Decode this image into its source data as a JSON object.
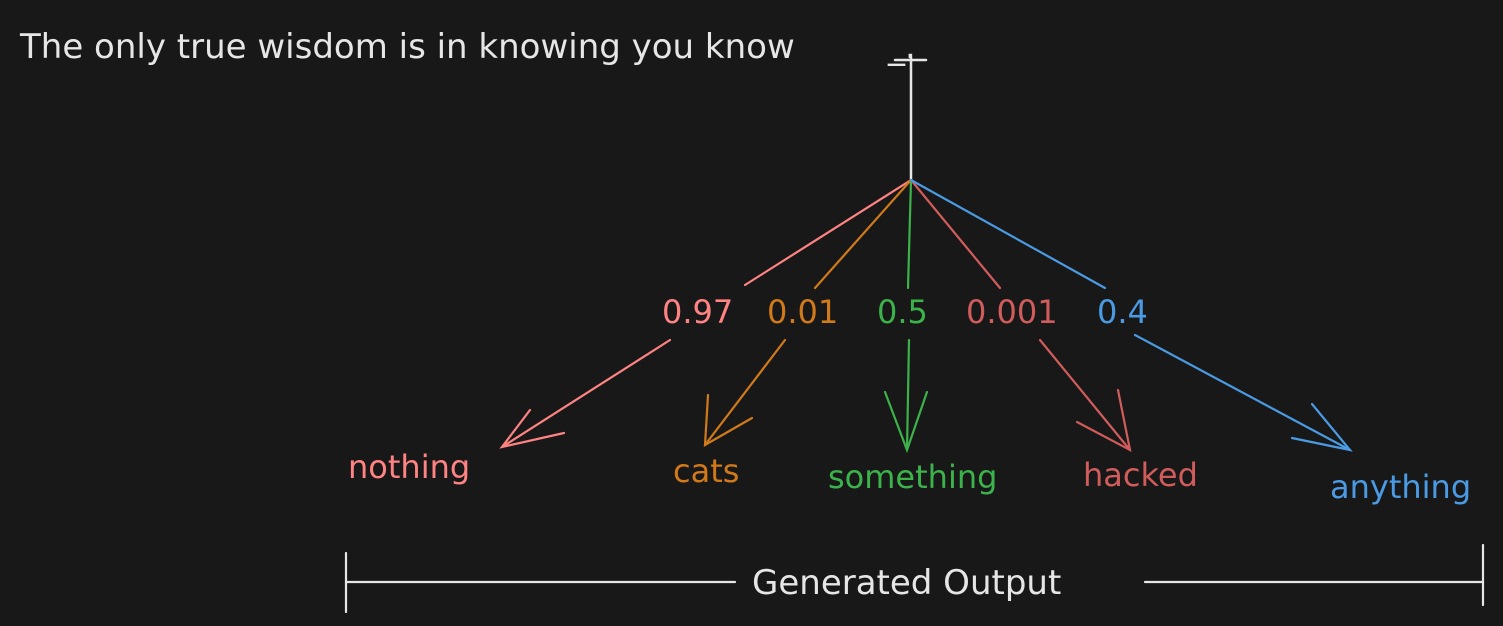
{
  "sentence": "The only true wisdom is in knowing you know",
  "blank_suffix": "_.",
  "footer_label": "Generated Output",
  "colors": {
    "background": "#181818",
    "stroke": "#e6e6e6"
  },
  "branches": [
    {
      "probability": "0.97",
      "word": "nothing",
      "color": "#ff8383"
    },
    {
      "probability": "0.01",
      "word": "cats",
      "color": "#d07a1a"
    },
    {
      "probability": "0.5",
      "word": "something",
      "color": "#3bb34a"
    },
    {
      "probability": "0.001",
      "word": "hacked",
      "color": "#d05c5c"
    },
    {
      "probability": "0.4",
      "word": "anything",
      "color": "#4a9be3"
    }
  ]
}
